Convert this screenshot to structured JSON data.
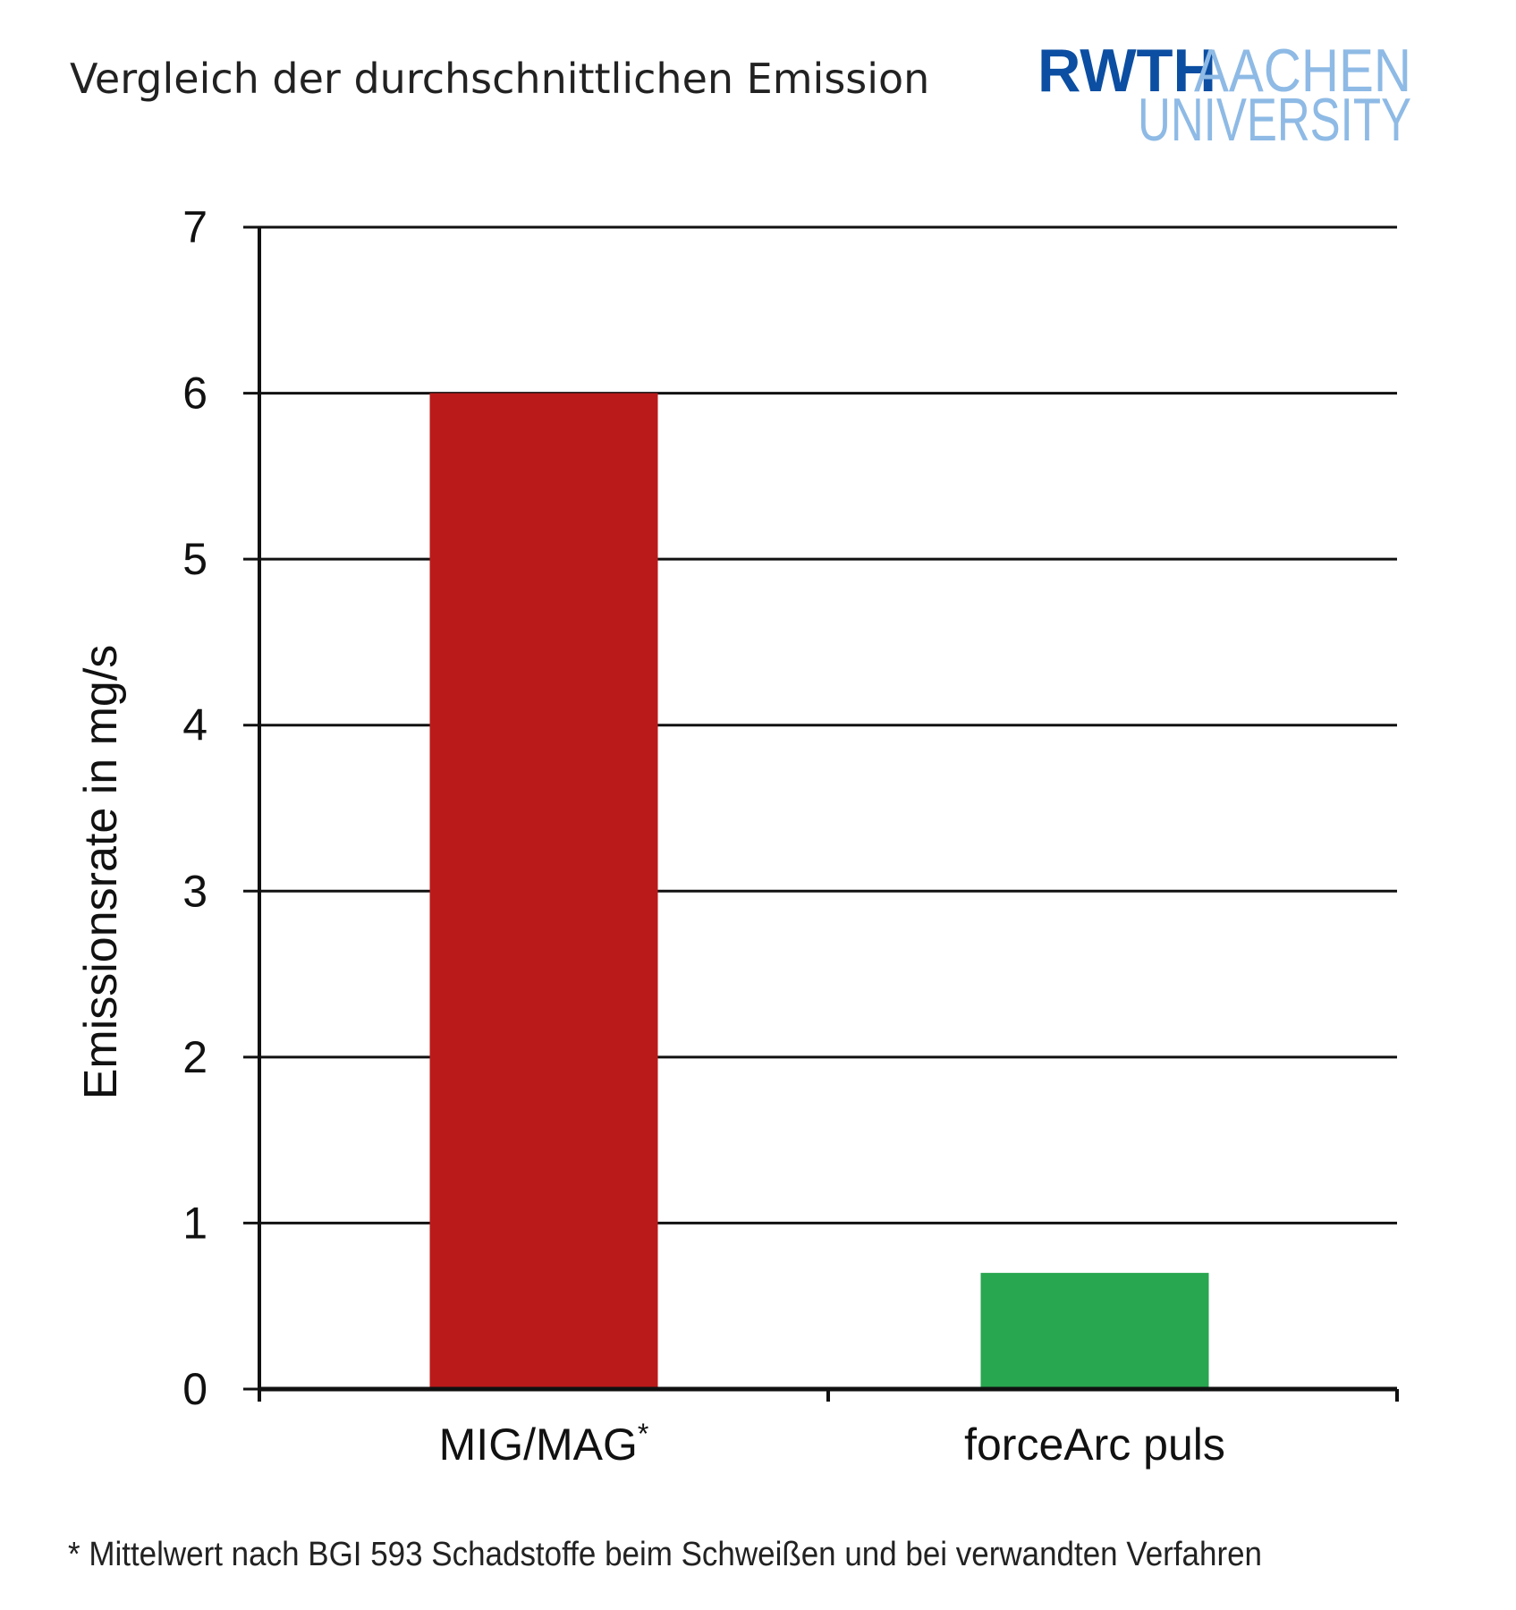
{
  "chart_data": {
    "type": "bar",
    "title": "Vergleich der durchschnittlichen Emission",
    "categories": [
      "MIG/MAG*",
      "forceArc puls"
    ],
    "category_labels": [
      {
        "text": "MIG/MAG",
        "sup": "*"
      },
      {
        "text": "forceArc puls",
        "sup": ""
      }
    ],
    "values": [
      6.0,
      0.7
    ],
    "colors": [
      "#bb1a1a",
      "#29a650"
    ],
    "xlabel": "",
    "ylabel": "Emissionsrate in mg/s",
    "ylim": [
      0,
      7
    ],
    "yticks": [
      "0",
      "1",
      "2",
      "3",
      "4",
      "5",
      "6",
      "7"
    ],
    "grid": true,
    "footnote": "* Mittelwert nach BGI 593 Schadstoffe beim Schweißen und bei verwandten Verfahren"
  },
  "logo": {
    "line1a": "RWTH",
    "line1b": "AACHEN",
    "line2": "UNIVERSITY",
    "dark": "#0b4ea2",
    "light": "#8ebae5"
  }
}
